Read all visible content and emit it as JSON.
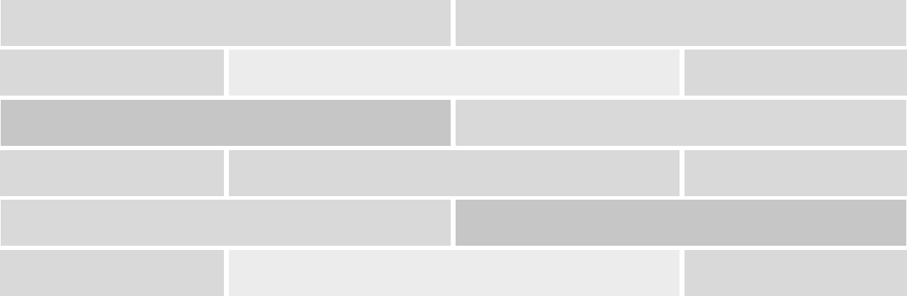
{
  "colors": {
    "medium": "#d9d9d9",
    "light": "#ececec",
    "dark": "#c6c6c6"
  },
  "rows": [
    {
      "pattern": "half",
      "tones": [
        "medium",
        "medium"
      ]
    },
    {
      "pattern": "offset",
      "tones": [
        "medium",
        "light",
        "medium"
      ]
    },
    {
      "pattern": "half",
      "tones": [
        "dark",
        "medium"
      ]
    },
    {
      "pattern": "offset",
      "tones": [
        "medium",
        "medium",
        "medium"
      ]
    },
    {
      "pattern": "half",
      "tones": [
        "medium",
        "dark"
      ]
    },
    {
      "pattern": "offset",
      "tones": [
        "medium",
        "light",
        "medium"
      ]
    }
  ]
}
